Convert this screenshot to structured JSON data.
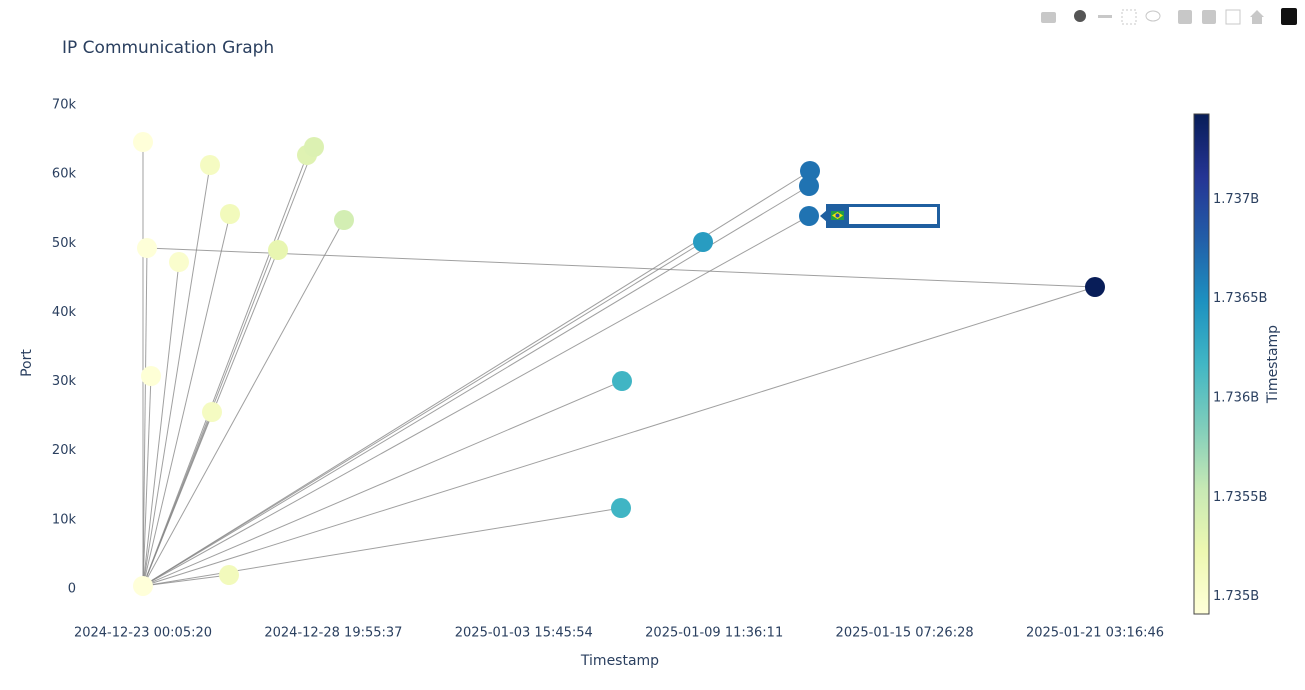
{
  "chart_data": {
    "type": "network-scatter",
    "title": "IP Communication Graph",
    "x_label": "Timestamp",
    "y_label": "Port",
    "x": [
      1734912320,
      1734912320,
      1734922896,
      1734933472,
      1735007504,
      1735089468,
      1735094756,
      1735139704,
      1735142348,
      1735269260,
      1735345936,
      1735364444,
      1735443764,
      1736176152,
      1736178796,
      1736392960,
      1736673224,
      1736673224,
      1736675868,
      1737429408
    ],
    "values": [
      443,
      64650,
      49320,
      30810,
      47290,
      61320,
      25600,
      2025,
      54240,
      49030,
      62770,
      63930,
      53370,
      11715,
      30080,
      50190,
      53950,
      58290,
      60460,
      43680
    ],
    "edges": [
      [
        0,
        1
      ],
      [
        0,
        2
      ],
      [
        0,
        3
      ],
      [
        0,
        4
      ],
      [
        0,
        5
      ],
      [
        0,
        6
      ],
      [
        0,
        7
      ],
      [
        0,
        8
      ],
      [
        0,
        9
      ],
      [
        0,
        10
      ],
      [
        0,
        11
      ],
      [
        0,
        12
      ],
      [
        0,
        13
      ],
      [
        0,
        14
      ],
      [
        0,
        15
      ],
      [
        0,
        16
      ],
      [
        0,
        17
      ],
      [
        0,
        18
      ],
      [
        0,
        19
      ],
      [
        2,
        19
      ]
    ],
    "xlim": [
      1734745749,
      1737601277
    ],
    "xticks": [
      {
        "value": 1734912320,
        "label": "2024-12-23 00:05:20"
      },
      {
        "value": 1735415737,
        "label": "2024-12-28 19:55:37"
      },
      {
        "value": 1735919154,
        "label": "2025-01-03 15:45:54"
      },
      {
        "value": 1736422571,
        "label": "2025-01-09 11:36:11"
      },
      {
        "value": 1736925988,
        "label": "2025-01-15 07:26:28"
      },
      {
        "value": 1737429406,
        "label": "2025-01-21 03:16:46"
      }
    ],
    "ylim": [
      -4480,
      73620
    ],
    "yticks": [
      0,
      {
        "value": 10000,
        "label": "10k"
      },
      {
        "value": 20000,
        "label": "20k"
      },
      {
        "value": 30000,
        "label": "30k"
      },
      {
        "value": 40000,
        "label": "40k"
      },
      {
        "value": 50000,
        "label": "50k"
      },
      {
        "value": 60000,
        "label": "60k"
      },
      {
        "value": 70000,
        "label": "70k"
      }
    ],
    "colorbar_title": "Timestamp",
    "colorscale": [
      "#ffffd9",
      "#edf8b1",
      "#c7e9b4",
      "#7fcdbb",
      "#41b6c4",
      "#1d91c0",
      "#225ea8",
      "#253494",
      "#081d58"
    ],
    "colorbar_ticks": [
      {
        "value": 1735000000,
        "label": "1.735B"
      },
      {
        "value": 1735500000,
        "label": "1.7355B"
      },
      {
        "value": 1736000000,
        "label": "1.736B"
      },
      {
        "value": 1736500000,
        "label": "1.7365B"
      },
      {
        "value": 1737000000,
        "label": "1.737B"
      }
    ],
    "edge_color": "#888888"
  }
}
